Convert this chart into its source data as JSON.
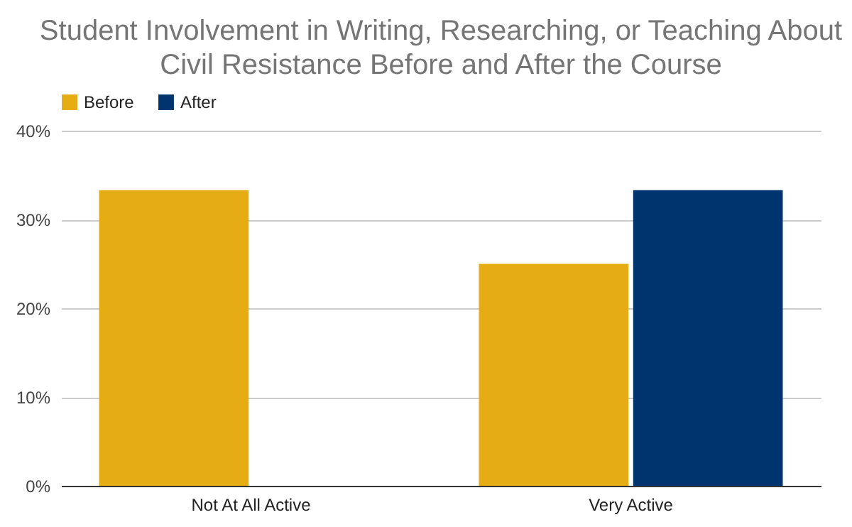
{
  "chart_data": {
    "type": "bar",
    "title": "Student Involvement in Writing, Researching, or Teaching About Civil Resistance Before and After the Course",
    "categories": [
      "Not At All Active",
      "Very Active"
    ],
    "series": [
      {
        "name": "Before",
        "color": "#e6ac13",
        "values": [
          33.3,
          25
        ]
      },
      {
        "name": "After",
        "color": "#00346e",
        "values": [
          0,
          33.3
        ]
      }
    ],
    "ylim": [
      0,
      40
    ],
    "yticks": [
      {
        "value": 0,
        "label": "0%"
      },
      {
        "value": 10,
        "label": "10%"
      },
      {
        "value": 20,
        "label": "20%"
      },
      {
        "value": 30,
        "label": "30%"
      },
      {
        "value": 40,
        "label": "40%"
      }
    ],
    "grid": "y",
    "legend": "top"
  }
}
